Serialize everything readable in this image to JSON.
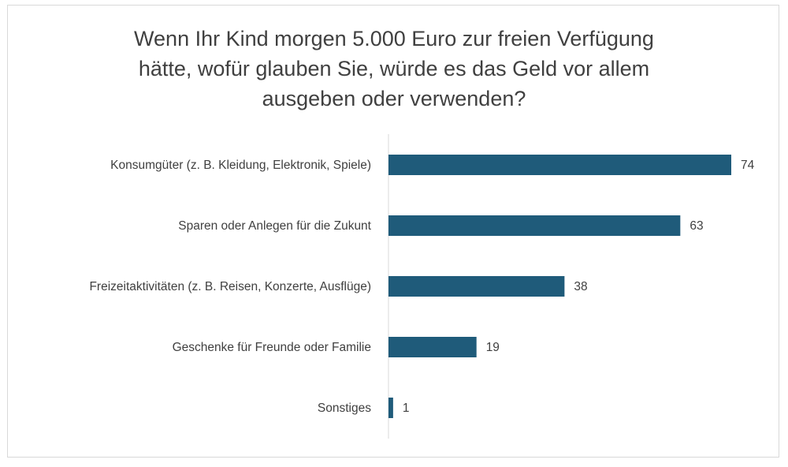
{
  "chart_data": {
    "type": "bar",
    "orientation": "horizontal",
    "title": "Wenn Ihr Kind morgen 5.000 Euro zur freien Verfügung\nhätte, wofür glauben Sie, würde es das Geld vor allem\nausgeben oder verwenden?",
    "categories": [
      "Konsumgüter (z. B. Kleidung, Elektronik, Spiele)",
      "Sparen oder Anlegen für die Zukunt",
      "Freizeitaktivitäten (z. B. Reisen, Konzerte, Ausflüge)",
      "Geschenke für Freunde oder Familie",
      "Sonstiges"
    ],
    "values": [
      74,
      63,
      38,
      19,
      1
    ],
    "data_labels": [
      "74",
      "63",
      "38",
      "19",
      "1"
    ],
    "xlabel": "",
    "ylabel": "",
    "xlim": [
      0,
      74
    ],
    "grid": false,
    "legend": "none",
    "bar_color": "#1f5b7a",
    "text_color": "#404040",
    "axis_color": "#d9d9d9"
  }
}
